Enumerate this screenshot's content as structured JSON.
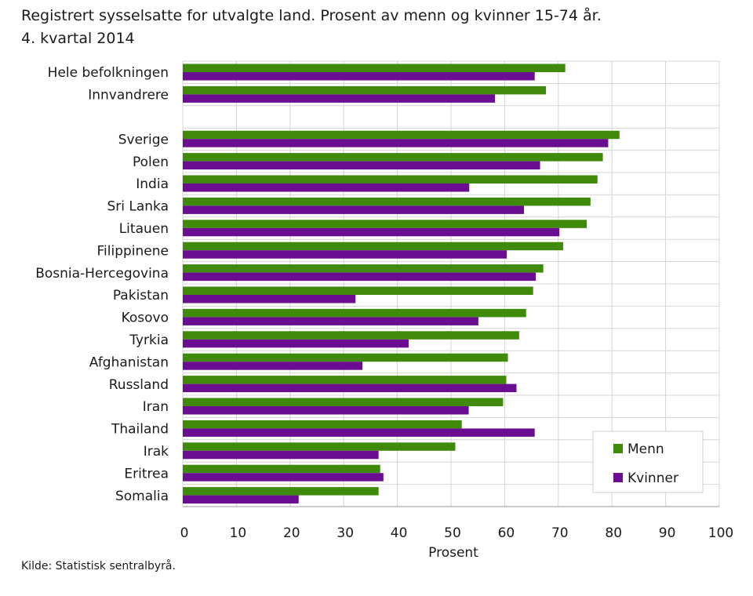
{
  "title_line1": "Registrert sysselsatte for utvalgte land. Prosent av menn og kvinner 15-74 år.",
  "title_line2": "4. kvartal 2014",
  "source": "Kilde: Statistisk sentralbyrå.",
  "colors": {
    "menn": "#3f8a0b",
    "kvinner": "#6a0d91",
    "grid": "#d4d4d4",
    "axis": "#1a1a1a"
  },
  "chart_data": {
    "type": "bar",
    "orientation": "horizontal",
    "title": "Registrert sysselsatte for utvalgte land. Prosent av menn og kvinner 15-74 år. 4. kvartal 2014",
    "xlabel": "Prosent",
    "ylabel": "",
    "xlim": [
      0,
      100
    ],
    "xticks": [
      "0",
      "10",
      "20",
      "30",
      "40",
      "50",
      "60",
      "70",
      "80",
      "90",
      "100"
    ],
    "grid": true,
    "legend_position": "bottom-right",
    "categories": [
      "Hele befolkningen",
      "Innvandrere ",
      "",
      "Sverige",
      "Polen",
      "India",
      "Sri Lanka",
      "Litauen",
      "Filippinene",
      "Bosnia-Hercegovina",
      "Pakistan",
      "Kosovo",
      "Tyrkia",
      "Afghanistan",
      "Russland",
      "Iran",
      "Thailand",
      "Irak",
      "Eritrea",
      "Somalia"
    ],
    "series": [
      {
        "name": "Menn",
        "values": [
          71.3,
          67.7,
          null,
          81.4,
          78.3,
          77.3,
          76.0,
          75.3,
          70.9,
          67.2,
          65.3,
          64.0,
          62.7,
          60.6,
          60.3,
          59.7,
          52.0,
          50.8,
          36.8,
          36.5
        ]
      },
      {
        "name": "Kvinner",
        "values": [
          65.6,
          58.2,
          null,
          79.3,
          66.6,
          53.4,
          63.6,
          70.2,
          60.4,
          65.8,
          32.2,
          55.1,
          42.1,
          33.5,
          62.2,
          53.3,
          65.6,
          36.5,
          37.4,
          21.6
        ]
      }
    ]
  }
}
